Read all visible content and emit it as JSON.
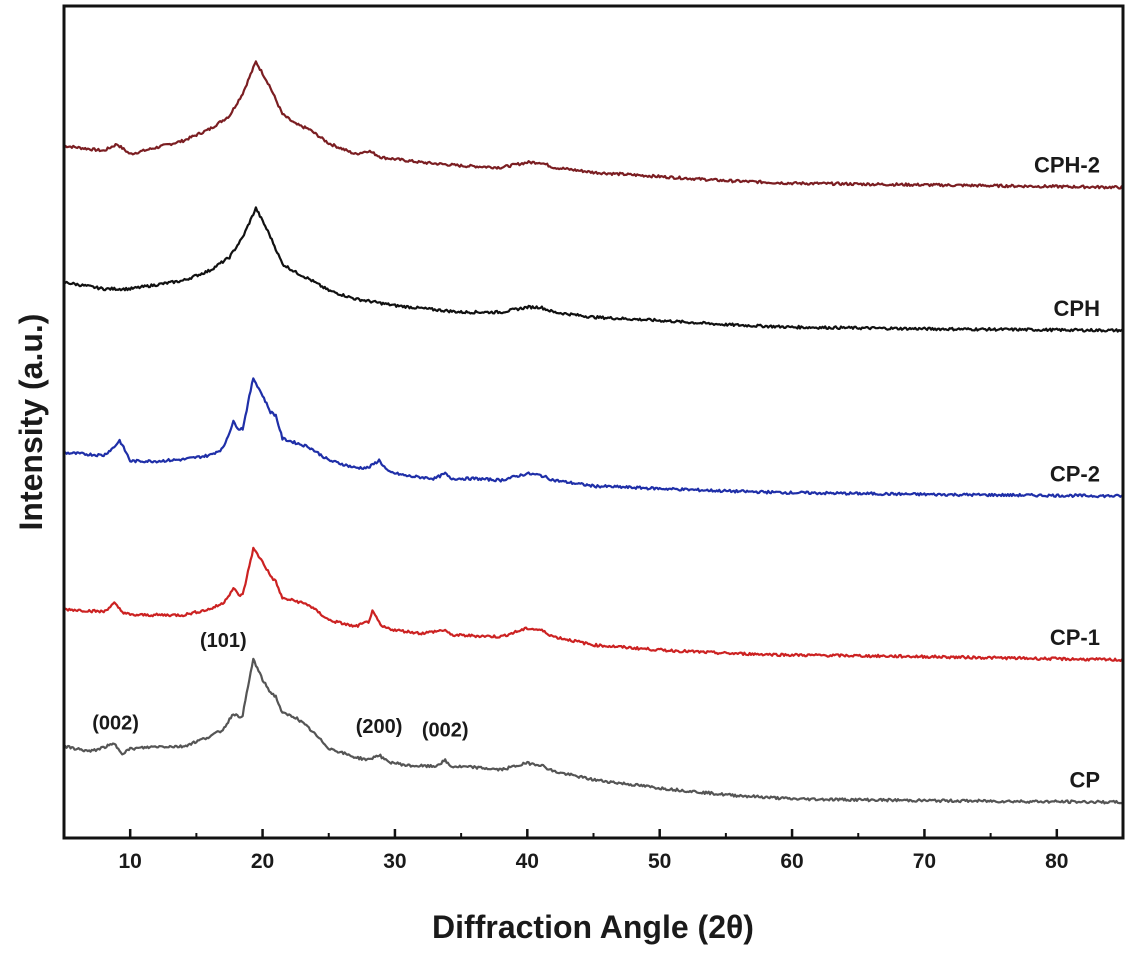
{
  "chart_data": {
    "type": "line",
    "title": "",
    "xlabel": "Diffraction Angle (2θ)",
    "ylabel": "Intensity (a.u.)",
    "xlim": [
      5,
      85
    ],
    "xticks": [
      10,
      20,
      30,
      40,
      50,
      60,
      70,
      80
    ],
    "ylim": [
      0,
      1000
    ],
    "y_tick_labels_shown": false,
    "grid": false,
    "legend": "inline labels at right end of each curve",
    "series": [
      {
        "name": "CPH-2",
        "color": "#7b1e22",
        "offset": 800,
        "points": [
          [
            5,
            32
          ],
          [
            8,
            26
          ],
          [
            9,
            34
          ],
          [
            10,
            22
          ],
          [
            12,
            30
          ],
          [
            14,
            38
          ],
          [
            16,
            52
          ],
          [
            17.5,
            68
          ],
          [
            18.5,
            95
          ],
          [
            19.5,
            133
          ],
          [
            20.5,
            105
          ],
          [
            21.5,
            70
          ],
          [
            22.5,
            58
          ],
          [
            23.5,
            52
          ],
          [
            25,
            35
          ],
          [
            27,
            22
          ],
          [
            28,
            26
          ],
          [
            29,
            18
          ],
          [
            32,
            12
          ],
          [
            35,
            8
          ],
          [
            38,
            6
          ],
          [
            40,
            12
          ],
          [
            41,
            12
          ],
          [
            42,
            6
          ],
          [
            45,
            0
          ],
          [
            50,
            -5
          ],
          [
            55,
            -10
          ],
          [
            60,
            -13
          ],
          [
            70,
            -15
          ],
          [
            85,
            -18
          ]
        ]
      },
      {
        "name": "CPH",
        "color": "#111111",
        "offset": 620,
        "points": [
          [
            5,
            48
          ],
          [
            8,
            40
          ],
          [
            10,
            40
          ],
          [
            12,
            45
          ],
          [
            14,
            50
          ],
          [
            16,
            62
          ],
          [
            17.5,
            78
          ],
          [
            18.5,
            102
          ],
          [
            19.5,
            137
          ],
          [
            20.5,
            106
          ],
          [
            21.5,
            70
          ],
          [
            22.5,
            60
          ],
          [
            23.5,
            52
          ],
          [
            25,
            38
          ],
          [
            27,
            28
          ],
          [
            30,
            20
          ],
          [
            33,
            15
          ],
          [
            35,
            12
          ],
          [
            38,
            12
          ],
          [
            40,
            18
          ],
          [
            41,
            18
          ],
          [
            42,
            12
          ],
          [
            45,
            6
          ],
          [
            50,
            2
          ],
          [
            55,
            -3
          ],
          [
            60,
            -6
          ],
          [
            70,
            -8
          ],
          [
            85,
            -10
          ]
        ]
      },
      {
        "name": "CP-2",
        "color": "#1f2fa8",
        "offset": 420,
        "points": [
          [
            5,
            43
          ],
          [
            8,
            40
          ],
          [
            8.8,
            50
          ],
          [
            9.2,
            58
          ],
          [
            9.8,
            40
          ],
          [
            10,
            33
          ],
          [
            12,
            33
          ],
          [
            14,
            35
          ],
          [
            16,
            40
          ],
          [
            17,
            48
          ],
          [
            17.8,
            80
          ],
          [
            18.2,
            72
          ],
          [
            18.5,
            72
          ],
          [
            19.3,
            133
          ],
          [
            20,
            112
          ],
          [
            20.6,
            92
          ],
          [
            21,
            88
          ],
          [
            21.5,
            60
          ],
          [
            22.5,
            55
          ],
          [
            23.5,
            50
          ],
          [
            25,
            34
          ],
          [
            27,
            25
          ],
          [
            28,
            25
          ],
          [
            28.8,
            34
          ],
          [
            29.5,
            20
          ],
          [
            31,
            15
          ],
          [
            33,
            12
          ],
          [
            33.8,
            18
          ],
          [
            34.2,
            12
          ],
          [
            36,
            12
          ],
          [
            38,
            10
          ],
          [
            40,
            18
          ],
          [
            41,
            16
          ],
          [
            42,
            10
          ],
          [
            45,
            3
          ],
          [
            50,
            0
          ],
          [
            55,
            -3
          ],
          [
            60,
            -5
          ],
          [
            70,
            -7
          ],
          [
            85,
            -9
          ]
        ]
      },
      {
        "name": "CP-1",
        "color": "#cc2222",
        "offset": 220,
        "points": [
          [
            5,
            55
          ],
          [
            8,
            52
          ],
          [
            8.8,
            62
          ],
          [
            9.4,
            52
          ],
          [
            10,
            48
          ],
          [
            12,
            48
          ],
          [
            14,
            48
          ],
          [
            16,
            55
          ],
          [
            17,
            62
          ],
          [
            17.8,
            80
          ],
          [
            18.2,
            72
          ],
          [
            18.5,
            72
          ],
          [
            19.3,
            128
          ],
          [
            20,
            112
          ],
          [
            20.6,
            95
          ],
          [
            21,
            88
          ],
          [
            21.5,
            68
          ],
          [
            22.5,
            65
          ],
          [
            23.5,
            60
          ],
          [
            25,
            42
          ],
          [
            27,
            34
          ],
          [
            28,
            40
          ],
          [
            28.3,
            52
          ],
          [
            29,
            34
          ],
          [
            30,
            30
          ],
          [
            32,
            26
          ],
          [
            33.8,
            30
          ],
          [
            34.2,
            24
          ],
          [
            36,
            23
          ],
          [
            38,
            22
          ],
          [
            40,
            32
          ],
          [
            41,
            30
          ],
          [
            42,
            22
          ],
          [
            45,
            12
          ],
          [
            50,
            6
          ],
          [
            55,
            2
          ],
          [
            60,
            0
          ],
          [
            70,
            -2
          ],
          [
            85,
            -6
          ]
        ]
      },
      {
        "name": "CP",
        "color": "#555555",
        "offset": 0,
        "points": [
          [
            5,
            110
          ],
          [
            7,
            104
          ],
          [
            8.8,
            113
          ],
          [
            9.4,
            102
          ],
          [
            10,
            107
          ],
          [
            12,
            110
          ],
          [
            14,
            110
          ],
          [
            16,
            122
          ],
          [
            17,
            130
          ],
          [
            17.8,
            150
          ],
          [
            18.2,
            145
          ],
          [
            18.5,
            148
          ],
          [
            19.3,
            215
          ],
          [
            20,
            190
          ],
          [
            20.6,
            175
          ],
          [
            21,
            170
          ],
          [
            21.5,
            150
          ],
          [
            22.5,
            145
          ],
          [
            23.5,
            132
          ],
          [
            25,
            108
          ],
          [
            27,
            97
          ],
          [
            28,
            94
          ],
          [
            28.8,
            100
          ],
          [
            29.4,
            92
          ],
          [
            31,
            87
          ],
          [
            33,
            86
          ],
          [
            33.8,
            93
          ],
          [
            34.2,
            86
          ],
          [
            36,
            85
          ],
          [
            38,
            82
          ],
          [
            40,
            90
          ],
          [
            41,
            88
          ],
          [
            42,
            80
          ],
          [
            45,
            70
          ],
          [
            50,
            60
          ],
          [
            55,
            52
          ],
          [
            60,
            47
          ],
          [
            70,
            45
          ],
          [
            85,
            43
          ]
        ]
      }
    ],
    "annotations": [
      {
        "text": "(002)",
        "x": 8.9,
        "series": "CP"
      },
      {
        "text": "(101)",
        "x": 19.3,
        "series": "CP"
      },
      {
        "text": "(200)",
        "x": 28.8,
        "series": "CP"
      },
      {
        "text": "(002)",
        "x": 33.8,
        "series": "CP"
      }
    ]
  }
}
